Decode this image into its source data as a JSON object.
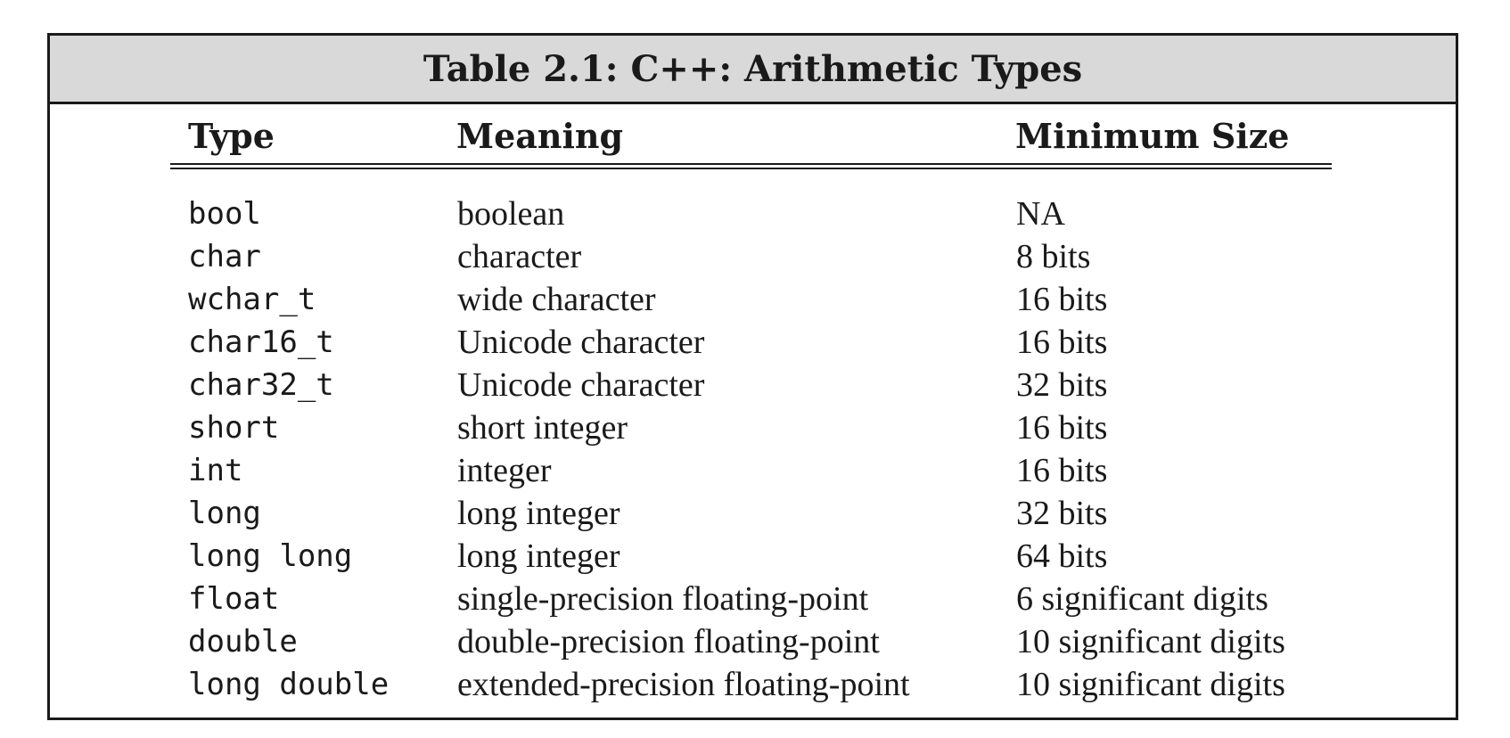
{
  "title": "Table 2.1: C++: Arithmetic Types",
  "columns": [
    "Type",
    "Meaning",
    "Minimum Size"
  ],
  "rows": [
    {
      "type": "bool",
      "meaning": "boolean",
      "size": "NA"
    },
    {
      "type": "char",
      "meaning": "character",
      "size": "8 bits"
    },
    {
      "type": "wchar_t",
      "meaning": "wide character",
      "size": "16 bits"
    },
    {
      "type": "char16_t",
      "meaning": "Unicode character",
      "size": "16 bits"
    },
    {
      "type": "char32_t",
      "meaning": "Unicode character",
      "size": "32 bits"
    },
    {
      "type": "short",
      "meaning": "short integer",
      "size": "16 bits"
    },
    {
      "type": "int",
      "meaning": "integer",
      "size": "16 bits"
    },
    {
      "type": "long",
      "meaning": "long integer",
      "size": "32 bits"
    },
    {
      "type": "long long",
      "meaning": "long integer",
      "size": "64 bits"
    },
    {
      "type": "float",
      "meaning": "single-precision floating-point",
      "size": "6 significant digits"
    },
    {
      "type": "double",
      "meaning": "double-precision floating-point",
      "size": "10 significant digits"
    },
    {
      "type": "long double",
      "meaning": "extended-precision floating-point",
      "size": "10 significant digits"
    }
  ]
}
